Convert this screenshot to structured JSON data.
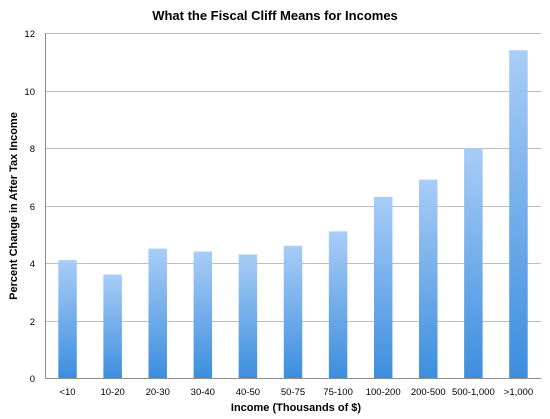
{
  "chart_data": {
    "type": "bar",
    "title": "What the Fiscal Cliff Means for Incomes",
    "xlabel": "Income (Thousands of $)",
    "ylabel": "Percent Change in After Tax Income",
    "categories": [
      "<10",
      "10-20",
      "20-30",
      "30-40",
      "40-50",
      "50-75",
      "75-100",
      "100-200",
      "200-500",
      "500-1,000",
      ">1,000"
    ],
    "values": [
      4.1,
      3.6,
      4.5,
      4.4,
      4.3,
      4.6,
      5.1,
      6.3,
      6.9,
      8.0,
      11.4
    ],
    "ylim": [
      0,
      12
    ],
    "yticks": [
      0,
      2,
      4,
      6,
      8,
      10,
      12
    ],
    "grid": true,
    "legend": "none",
    "colors": {
      "bar_top": "#a9cdf7",
      "bar_bottom": "#3d8ede",
      "grid": "#bdbdbd"
    }
  }
}
